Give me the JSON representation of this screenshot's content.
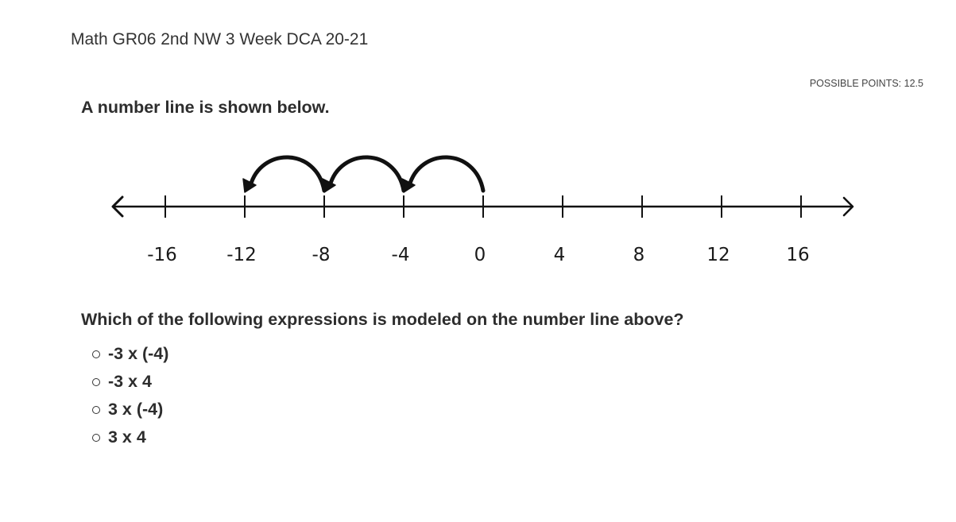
{
  "quiz": {
    "title": "Math GR06 2nd NW 3 Week DCA 20-21"
  },
  "question": {
    "points_label": "POSSIBLE POINTS:",
    "points_value": "12.5",
    "intro": "A number line is shown below.",
    "prompt": "Which of the following expressions is modeled on the number line above?",
    "options": [
      {
        "label": "-3 x (-4)"
      },
      {
        "label": "-3 x 4"
      },
      {
        "label": "3 x (-4)"
      },
      {
        "label": "3 x 4"
      }
    ]
  },
  "figure": {
    "tick_values": [
      -16,
      -12,
      -8,
      -4,
      0,
      4,
      8,
      12,
      16
    ],
    "tick_labels": [
      "-16",
      "-12",
      "-8",
      "-4",
      "0",
      "4",
      "8",
      "12",
      "16"
    ],
    "jumps": [
      {
        "from": 0,
        "to": -4
      },
      {
        "from": -4,
        "to": -8
      },
      {
        "from": -8,
        "to": -12
      }
    ],
    "line_color": "#111111"
  }
}
